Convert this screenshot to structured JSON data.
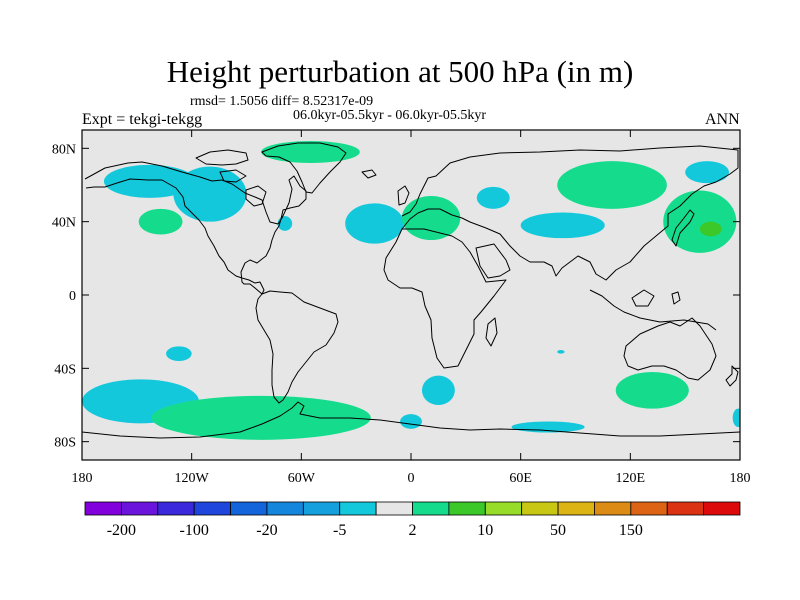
{
  "header": {
    "title": "Height perturbation at 500 hPa (in m)",
    "stats": "rmsd= 1.5056 diff= 8.52317e-09",
    "period": "06.0kyr-05.5kyr - 06.0kyr-05.5kyr",
    "experiment": "Expt = tekgi-tekgg",
    "season": "ANN"
  },
  "map": {
    "lon_ticks": [
      {
        "lon": -180,
        "label": "180"
      },
      {
        "lon": -120,
        "label": "120W"
      },
      {
        "lon": -60,
        "label": "60W"
      },
      {
        "lon": 0,
        "label": "0"
      },
      {
        "lon": 60,
        "label": "60E"
      },
      {
        "lon": 120,
        "label": "120E"
      },
      {
        "lon": 180,
        "label": "180"
      }
    ],
    "lat_ticks": [
      {
        "lat": 80,
        "label": "80N"
      },
      {
        "lat": 40,
        "label": "40N"
      },
      {
        "lat": 0,
        "label": "0"
      },
      {
        "lat": -40,
        "label": "40S"
      },
      {
        "lat": -80,
        "label": "80S"
      }
    ],
    "background_color": "#e6e6e6",
    "regions": [
      {
        "name": "greenland-positive",
        "lon": -55,
        "lat": 78,
        "rlon": 27,
        "rlat": 6,
        "level": "2 to 10",
        "color": "#14dc8c"
      },
      {
        "name": "alaska-negative",
        "lon": -143,
        "lat": 62,
        "rlon": 25,
        "rlat": 9,
        "level": "-5 to -2",
        "color": "#14c8dc"
      },
      {
        "name": "canada-negative",
        "lon": -110,
        "lat": 55,
        "rlon": 20,
        "rlat": 15,
        "level": "-5 to -2",
        "color": "#14c8dc"
      },
      {
        "name": "pacific-positive",
        "lon": -137,
        "lat": 40,
        "rlon": 12,
        "rlat": 7,
        "level": "2 to 10",
        "color": "#14dc8c"
      },
      {
        "name": "east-us-negative",
        "lon": -69,
        "lat": 39,
        "rlon": 4,
        "rlat": 4,
        "level": "-5 to -2",
        "color": "#14c8dc"
      },
      {
        "name": "atlantic-negative",
        "lon": -20,
        "lat": 39,
        "rlon": 16,
        "rlat": 11,
        "level": "-5 to -2",
        "color": "#14c8dc"
      },
      {
        "name": "europe-positive",
        "lon": 11,
        "lat": 42,
        "rlon": 16,
        "rlat": 12,
        "level": "2 to 10",
        "color": "#14dc8c"
      },
      {
        "name": "caspian-negative",
        "lon": 45,
        "lat": 53,
        "rlon": 9,
        "rlat": 6,
        "level": "-5 to -2",
        "color": "#14c8dc"
      },
      {
        "name": "central-asia-negative",
        "lon": 83,
        "lat": 38,
        "rlon": 23,
        "rlat": 7,
        "level": "-5 to -2",
        "color": "#14c8dc"
      },
      {
        "name": "siberia-positive",
        "lon": 110,
        "lat": 60,
        "rlon": 30,
        "rlat": 13,
        "level": "2 to 10",
        "color": "#14dc8c"
      },
      {
        "name": "north-pacific-positive",
        "lon": 158,
        "lat": 40,
        "rlon": 20,
        "rlat": 17,
        "level": "2 to 10",
        "color": "#14dc8c"
      },
      {
        "name": "north-pacific-strong-positive",
        "lon": 164,
        "lat": 36,
        "rlon": 6,
        "rlat": 4,
        "level": "10 to 50",
        "color": "#3cc828"
      },
      {
        "name": "kamchatka-negative",
        "lon": 162,
        "lat": 67,
        "rlon": 12,
        "rlat": 6,
        "level": "-5 to -2",
        "color": "#14c8dc"
      },
      {
        "name": "south-pacific-small-negative",
        "lon": -127,
        "lat": -32,
        "rlon": 7,
        "rlat": 4,
        "level": "-5 to -2",
        "color": "#14c8dc"
      },
      {
        "name": "south-pacific-negative",
        "lon": -148,
        "lat": -58,
        "rlon": 32,
        "rlat": 12,
        "level": "-5 to -2",
        "color": "#14c8dc"
      },
      {
        "name": "drake-passage-positive",
        "lon": -82,
        "lat": -67,
        "rlon": 60,
        "rlat": 12,
        "level": "2 to 10",
        "color": "#14dc8c"
      },
      {
        "name": "south-atlantic-negative",
        "lon": 15,
        "lat": -52,
        "rlon": 9,
        "rlat": 8,
        "level": "-5 to -2",
        "color": "#14c8dc"
      },
      {
        "name": "weddell-negative",
        "lon": 0,
        "lat": -69,
        "rlon": 6,
        "rlat": 4,
        "level": "-5 to -2",
        "color": "#14c8dc"
      },
      {
        "name": "indian-ocean-small-negative",
        "lon": 82,
        "lat": -31,
        "rlon": 2,
        "rlat": 1,
        "level": "-5 to -2",
        "color": "#14c8dc"
      },
      {
        "name": "antarctic-coast-negative",
        "lon": 75,
        "lat": -72,
        "rlon": 20,
        "rlat": 3,
        "level": "-5 to -2",
        "color": "#14c8dc"
      },
      {
        "name": "south-indian-positive",
        "lon": 132,
        "lat": -52,
        "rlon": 20,
        "rlat": 10,
        "level": "2 to 10",
        "color": "#14dc8c"
      },
      {
        "name": "ross-sea-negative",
        "lon": 179,
        "lat": -67,
        "rlon": 3,
        "rlat": 5,
        "level": "-5 to -2",
        "color": "#14c8dc"
      }
    ]
  },
  "colorbar": {
    "colors": [
      "#8200dc",
      "#6a14dc",
      "#3c28dc",
      "#1e46dc",
      "#1464dc",
      "#1486dc",
      "#14a0dc",
      "#14c8dc",
      "#e6e6e6",
      "#14dc8c",
      "#3cc828",
      "#96dc28",
      "#c8c814",
      "#dcb414",
      "#dc8c14",
      "#dc6414",
      "#dc3214",
      "#dc0a0a"
    ],
    "labels": [
      {
        "edge": 1,
        "text": "-200"
      },
      {
        "edge": 3,
        "text": "-100"
      },
      {
        "edge": 5,
        "text": "-20"
      },
      {
        "edge": 7,
        "text": "-5"
      },
      {
        "edge": 9,
        "text": "2"
      },
      {
        "edge": 11,
        "text": "10"
      },
      {
        "edge": 13,
        "text": "50"
      },
      {
        "edge": 15,
        "text": "150"
      }
    ]
  }
}
